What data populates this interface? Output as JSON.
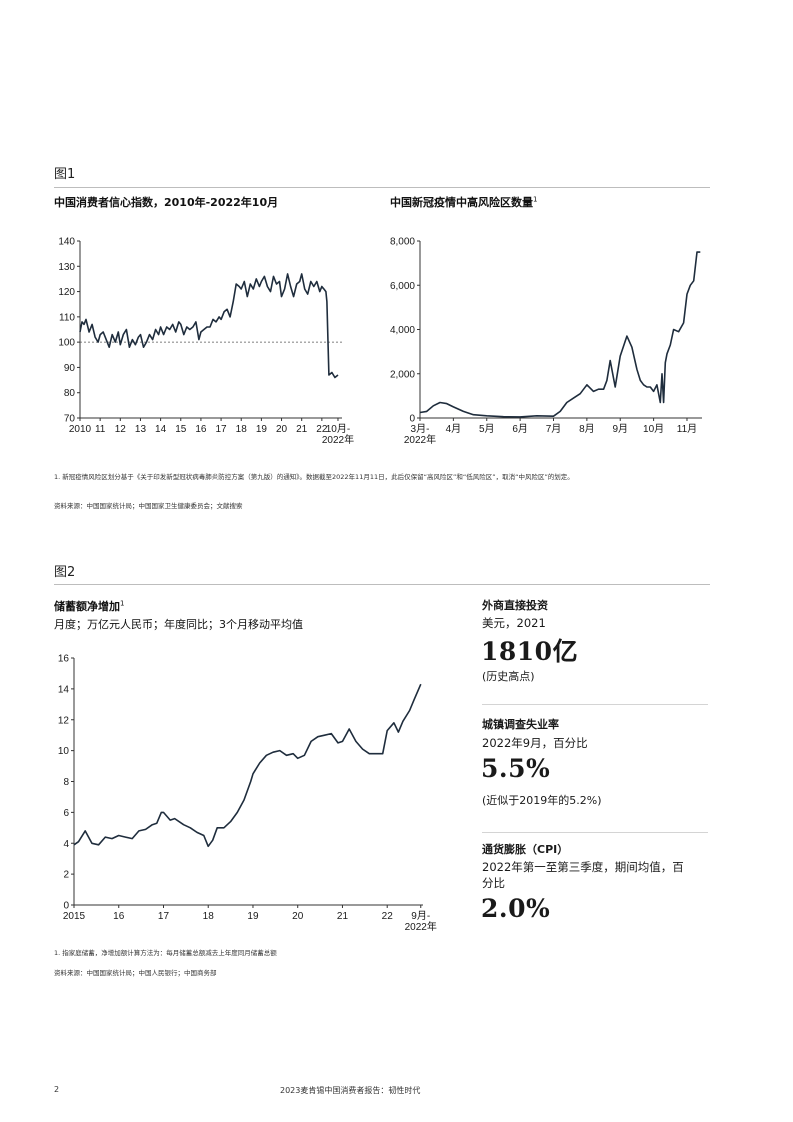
{
  "figure1": {
    "label": "图1",
    "left_title": "中国消费者信心指数，2010年-2022年10月",
    "right_title": "中国新冠疫情中高风险区数量",
    "right_title_sup": "1",
    "note": "1. 新冠疫情风险区划分基于《关于印发新型冠状病毒肺炎防控方案（第九版）的通知》。数据截至2022年11月11日，此后仅保留“高风险区”和“低风险区”，取消“中风险区”的划定。",
    "source": "资料来源：中国国家统计局；中国国家卫生健康委员会；文献搜索"
  },
  "figure2": {
    "label": "图2",
    "title": "储蓄额净增加",
    "title_sup": "1",
    "subtitle": "月度；万亿元人民币；年度同比；3个月移动平均值",
    "note": "1. 指家庭储蓄，净增加额计算方法为：每月储蓄总额减去上年度同月储蓄总额",
    "source": "资料来源：中国国家统计局；中国人民银行；中国商务部"
  },
  "kpis": [
    {
      "head": "外商直接投资",
      "sub": "美元，2021",
      "value": "1810亿",
      "note": "(历史高点)"
    },
    {
      "head": "城镇调查失业率",
      "sub": "2022年9月，百分比",
      "value": "5.5%",
      "note": "(近似于2019年的5.2%)"
    },
    {
      "head": "通货膨胀（CPI）",
      "sub": "2022年第一至第三季度，期间均值，百分比",
      "value": "2.0%",
      "note": ""
    }
  ],
  "footer": {
    "page": "2",
    "text": "2023麦肯锡中国消费者报告：韧性时代"
  },
  "chart_data": [
    {
      "type": "line",
      "ylim": [
        70,
        140
      ],
      "yticks": [
        70,
        80,
        90,
        100,
        110,
        120,
        130,
        140
      ],
      "xticks": [
        "2010",
        "11",
        "12",
        "13",
        "14",
        "15",
        "16",
        "17",
        "18",
        "19",
        "20",
        "21",
        "22",
        "10月-\n2022年"
      ],
      "reference_line": 100,
      "x": [
        2010.0,
        2010.1,
        2010.2,
        2010.3,
        2010.45,
        2010.6,
        2010.75,
        2010.9,
        2011.0,
        2011.15,
        2011.3,
        2011.45,
        2011.6,
        2011.75,
        2011.9,
        2012.0,
        2012.15,
        2012.3,
        2012.45,
        2012.6,
        2012.75,
        2012.9,
        2013.0,
        2013.15,
        2013.3,
        2013.45,
        2013.6,
        2013.75,
        2013.9,
        2014.0,
        2014.15,
        2014.3,
        2014.45,
        2014.6,
        2014.75,
        2014.9,
        2015.0,
        2015.15,
        2015.3,
        2015.45,
        2015.6,
        2015.75,
        2015.9,
        2016.0,
        2016.15,
        2016.3,
        2016.45,
        2016.6,
        2016.75,
        2016.9,
        2017.0,
        2017.15,
        2017.3,
        2017.45,
        2017.6,
        2017.75,
        2017.9,
        2018.0,
        2018.15,
        2018.3,
        2018.45,
        2018.6,
        2018.75,
        2018.9,
        2019.0,
        2019.15,
        2019.3,
        2019.45,
        2019.6,
        2019.75,
        2019.9,
        2020.0,
        2020.15,
        2020.3,
        2020.45,
        2020.6,
        2020.75,
        2020.9,
        2021.0,
        2021.15,
        2021.3,
        2021.45,
        2021.6,
        2021.75,
        2021.9,
        2022.0,
        2022.1,
        2022.2,
        2022.25,
        2022.35,
        2022.5,
        2022.65,
        2022.8
      ],
      "values": [
        104,
        108,
        107,
        109,
        104,
        107,
        102,
        100,
        103,
        104,
        101,
        98,
        103,
        100,
        104,
        99,
        103,
        105,
        98,
        101,
        99,
        102,
        103,
        98,
        100,
        103,
        101,
        105,
        103,
        106,
        103,
        106,
        105,
        107,
        104,
        108,
        107,
        103,
        106,
        105,
        106,
        108,
        101,
        104,
        105,
        106,
        106,
        109,
        108,
        110,
        109,
        112,
        113,
        110,
        116,
        123,
        122,
        121,
        124,
        118,
        123,
        121,
        125,
        122,
        124,
        126,
        122,
        120,
        126,
        123,
        124,
        118,
        121,
        127,
        122,
        118,
        123,
        124,
        127,
        121,
        119,
        124,
        122,
        124,
        120,
        122,
        121,
        120,
        116,
        87,
        88,
        86,
        87
      ]
    },
    {
      "type": "line",
      "ylim": [
        0,
        8000
      ],
      "yticks": [
        0,
        2000,
        4000,
        6000,
        8000
      ],
      "ytick_labels": [
        "0",
        "2,000",
        "4,000",
        "6,000",
        "8,000"
      ],
      "xticks": [
        "3月-\n2022年",
        "4月",
        "5月",
        "6月",
        "7月",
        "8月",
        "9月",
        "10月",
        "11月"
      ],
      "x": [
        0,
        0.2,
        0.4,
        0.6,
        0.8,
        1.0,
        1.3,
        1.6,
        2.0,
        2.5,
        3.0,
        3.5,
        4.0,
        4.2,
        4.4,
        4.6,
        4.8,
        5.0,
        5.2,
        5.35,
        5.5,
        5.6,
        5.7,
        5.85,
        6.0,
        6.2,
        6.35,
        6.5,
        6.6,
        6.7,
        6.8,
        6.9,
        7.0,
        7.1,
        7.2,
        7.25,
        7.3,
        7.35,
        7.4,
        7.5,
        7.6,
        7.75,
        7.9,
        8.0,
        8.1,
        8.2,
        8.3,
        8.4
      ],
      "values": [
        250,
        300,
        550,
        700,
        650,
        500,
        300,
        150,
        100,
        60,
        50,
        100,
        80,
        300,
        700,
        900,
        1100,
        1500,
        1200,
        1300,
        1300,
        1700,
        2600,
        1400,
        2800,
        3700,
        3200,
        2200,
        1700,
        1500,
        1400,
        1400,
        1200,
        1500,
        700,
        2000,
        700,
        2500,
        2900,
        3300,
        4000,
        3900,
        4300,
        5600,
        6000,
        6200,
        7500,
        7500
      ]
    },
    {
      "type": "line",
      "ylim": [
        0,
        16
      ],
      "yticks": [
        0,
        2,
        4,
        6,
        8,
        10,
        12,
        14,
        16
      ],
      "xticks": [
        "2015",
        "16",
        "17",
        "18",
        "19",
        "20",
        "21",
        "22",
        "9月-\n2022年"
      ],
      "x": [
        2015.0,
        2015.1,
        2015.25,
        2015.4,
        2015.55,
        2015.7,
        2015.85,
        2016.0,
        2016.15,
        2016.3,
        2016.45,
        2016.6,
        2016.75,
        2016.85,
        2016.95,
        2017.0,
        2017.15,
        2017.25,
        2017.45,
        2017.6,
        2017.75,
        2017.9,
        2018.0,
        2018.1,
        2018.2,
        2018.35,
        2018.5,
        2018.65,
        2018.8,
        2018.95,
        2019.0,
        2019.15,
        2019.3,
        2019.45,
        2019.6,
        2019.75,
        2019.9,
        2020.0,
        2020.15,
        2020.3,
        2020.45,
        2020.6,
        2020.75,
        2020.9,
        2021.0,
        2021.15,
        2021.3,
        2021.45,
        2021.6,
        2021.75,
        2021.9,
        2022.0,
        2022.15,
        2022.25,
        2022.35,
        2022.5,
        2022.6,
        2022.75
      ],
      "values": [
        3.9,
        4.1,
        4.8,
        4.0,
        3.9,
        4.4,
        4.3,
        4.5,
        4.4,
        4.3,
        4.8,
        4.9,
        5.2,
        5.3,
        6.0,
        6.0,
        5.5,
        5.6,
        5.2,
        5.0,
        4.7,
        4.5,
        3.8,
        4.2,
        5.0,
        5.0,
        5.4,
        6.0,
        6.8,
        8.0,
        8.5,
        9.2,
        9.7,
        9.9,
        10.0,
        9.7,
        9.8,
        9.5,
        9.7,
        10.6,
        10.9,
        11.0,
        11.1,
        10.5,
        10.6,
        11.4,
        10.6,
        10.1,
        9.8,
        9.8,
        9.8,
        11.3,
        11.8,
        11.2,
        11.9,
        12.6,
        13.3,
        14.3
      ]
    }
  ]
}
